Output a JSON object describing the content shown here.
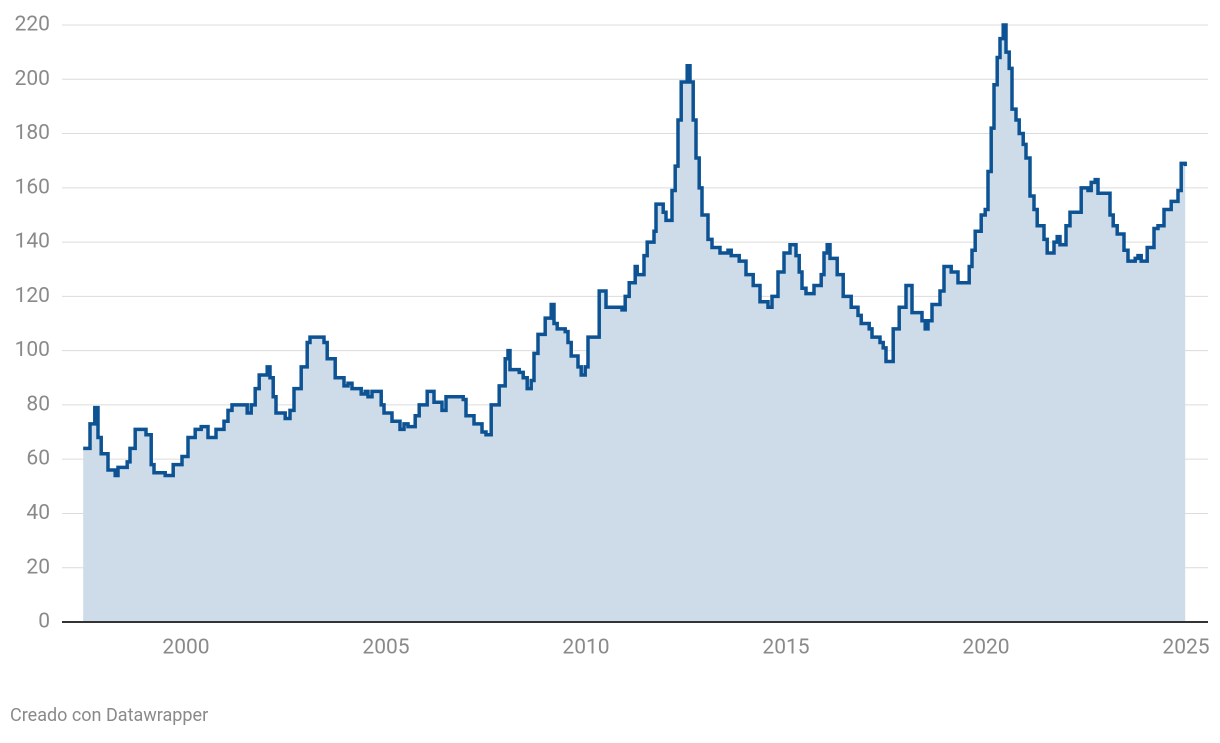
{
  "chart_data": {
    "type": "line",
    "step": true,
    "area": true,
    "color": "#0d5394",
    "area_color": "#cddce8",
    "grid": true,
    "footer": "Creado con Datawrapper",
    "x": [
      1997.43,
      1997.6,
      1997.72,
      1997.8,
      1997.88,
      1998.05,
      1998.23,
      1998.3,
      1998.53,
      1998.6,
      1998.73,
      1999.0,
      1999.13,
      1999.2,
      1999.48,
      1999.68,
      1999.9,
      2000.05,
      2000.23,
      2000.38,
      2000.55,
      2000.75,
      2000.95,
      2001.05,
      2001.15,
      2001.43,
      2001.53,
      2001.63,
      2001.73,
      2001.83,
      2002.03,
      2002.1,
      2002.18,
      2002.25,
      2002.48,
      2002.6,
      2002.7,
      2002.88,
      2003.03,
      2003.1,
      2003.45,
      2003.53,
      2003.73,
      2003.95,
      2004.05,
      2004.15,
      2004.38,
      2004.48,
      2004.55,
      2004.65,
      2004.88,
      2004.95,
      2005.15,
      2005.35,
      2005.45,
      2005.55,
      2005.73,
      2005.83,
      2006.03,
      2006.2,
      2006.4,
      2006.5,
      2006.8,
      2006.93,
      2007.0,
      2007.2,
      2007.4,
      2007.5,
      2007.63,
      2007.83,
      2007.98,
      2008.05,
      2008.1,
      2008.33,
      2008.43,
      2008.53,
      2008.63,
      2008.7,
      2008.8,
      2008.98,
      2009.13,
      2009.2,
      2009.28,
      2009.48,
      2009.55,
      2009.63,
      2009.8,
      2009.88,
      2009.98,
      2010.05,
      2010.25,
      2010.33,
      2010.43,
      2010.5,
      2010.9,
      2010.98,
      2011.08,
      2011.23,
      2011.28,
      2011.45,
      2011.53,
      2011.7,
      2011.75,
      2011.93,
      2012.0,
      2012.15,
      2012.23,
      2012.3,
      2012.38,
      2012.53,
      2012.6,
      2012.68,
      2012.75,
      2012.83,
      2012.9,
      2013.05,
      2013.15,
      2013.35,
      2013.55,
      2013.63,
      2013.83,
      2014.0,
      2014.18,
      2014.35,
      2014.55,
      2014.65,
      2014.8,
      2014.95,
      2015.1,
      2015.25,
      2015.33,
      2015.4,
      2015.5,
      2015.7,
      2015.88,
      2015.95,
      2016.03,
      2016.1,
      2016.28,
      2016.43,
      2016.63,
      2016.8,
      2016.88,
      2017.08,
      2017.15,
      2017.35,
      2017.43,
      2017.5,
      2017.68,
      2017.83,
      2018.0,
      2018.15,
      2018.4,
      2018.48,
      2018.55,
      2018.65,
      2018.85,
      2018.95,
      2019.13,
      2019.3,
      2019.58,
      2019.65,
      2019.73,
      2019.88,
      2019.98,
      2020.05,
      2020.13,
      2020.2,
      2020.28,
      2020.35,
      2020.43,
      2020.5,
      2020.58,
      2020.65,
      2020.75,
      2020.83,
      2020.93,
      2021.0,
      2021.1,
      2021.2,
      2021.28,
      2021.45,
      2021.53,
      2021.7,
      2021.78,
      2021.85,
      2022.0,
      2022.1,
      2022.38,
      2022.55,
      2022.63,
      2022.73,
      2022.8,
      2023.1,
      2023.18,
      2023.28,
      2023.45,
      2023.55,
      2023.73,
      2023.8,
      2023.88,
      2024.03,
      2024.2,
      2024.3,
      2024.45,
      2024.63,
      2024.8,
      2024.88,
      2024.98
    ],
    "values": [
      64,
      73,
      79,
      68,
      62,
      56,
      54,
      57,
      59,
      64,
      71,
      69,
      58,
      55,
      54,
      58,
      61,
      68,
      71,
      72,
      68,
      71,
      74,
      78,
      80,
      80,
      77,
      80,
      86,
      91,
      94,
      90,
      83,
      77,
      75,
      78,
      86,
      94,
      103,
      105,
      103,
      97,
      90,
      87,
      88,
      86,
      84,
      85,
      83,
      85,
      80,
      77,
      74,
      71,
      73,
      72,
      76,
      80,
      85,
      81,
      78,
      83,
      83,
      82,
      76,
      73,
      70,
      69,
      80,
      87,
      97,
      100,
      93,
      92,
      90,
      86,
      89,
      99,
      106,
      112,
      117,
      110,
      108,
      107,
      103,
      98,
      94,
      91,
      94,
      105,
      105,
      122,
      122,
      116,
      115,
      120,
      125,
      131,
      128,
      135,
      140,
      144,
      154,
      151,
      148,
      159,
      168,
      185,
      199,
      205,
      199,
      185,
      171,
      160,
      150,
      141,
      138,
      136,
      137,
      135,
      133,
      128,
      124,
      118,
      116,
      120,
      129,
      136,
      139,
      135,
      129,
      123,
      121,
      124,
      128,
      136,
      139,
      134,
      128,
      120,
      116,
      113,
      110,
      108,
      105,
      103,
      101,
      96,
      108,
      116,
      124,
      114,
      111,
      108,
      111,
      117,
      122,
      131,
      129,
      125,
      131,
      137,
      144,
      150,
      152,
      166,
      182,
      198,
      208,
      215,
      220,
      210,
      204,
      189,
      185,
      180,
      176,
      171,
      157,
      152,
      146,
      141,
      136,
      140,
      142,
      139,
      146,
      151,
      160,
      159,
      162,
      163,
      158,
      150,
      146,
      143,
      137,
      133,
      134,
      135,
      133,
      138,
      145,
      146,
      152,
      155,
      159,
      169,
      168
    ],
    "xlim": [
      1996.9,
      2025.55
    ],
    "xticks": [
      2000,
      2005,
      2010,
      2015,
      2020,
      2025
    ],
    "ylim": [
      0,
      220
    ],
    "yticks": [
      0,
      20,
      40,
      60,
      80,
      100,
      120,
      140,
      160,
      180,
      200,
      220
    ]
  }
}
